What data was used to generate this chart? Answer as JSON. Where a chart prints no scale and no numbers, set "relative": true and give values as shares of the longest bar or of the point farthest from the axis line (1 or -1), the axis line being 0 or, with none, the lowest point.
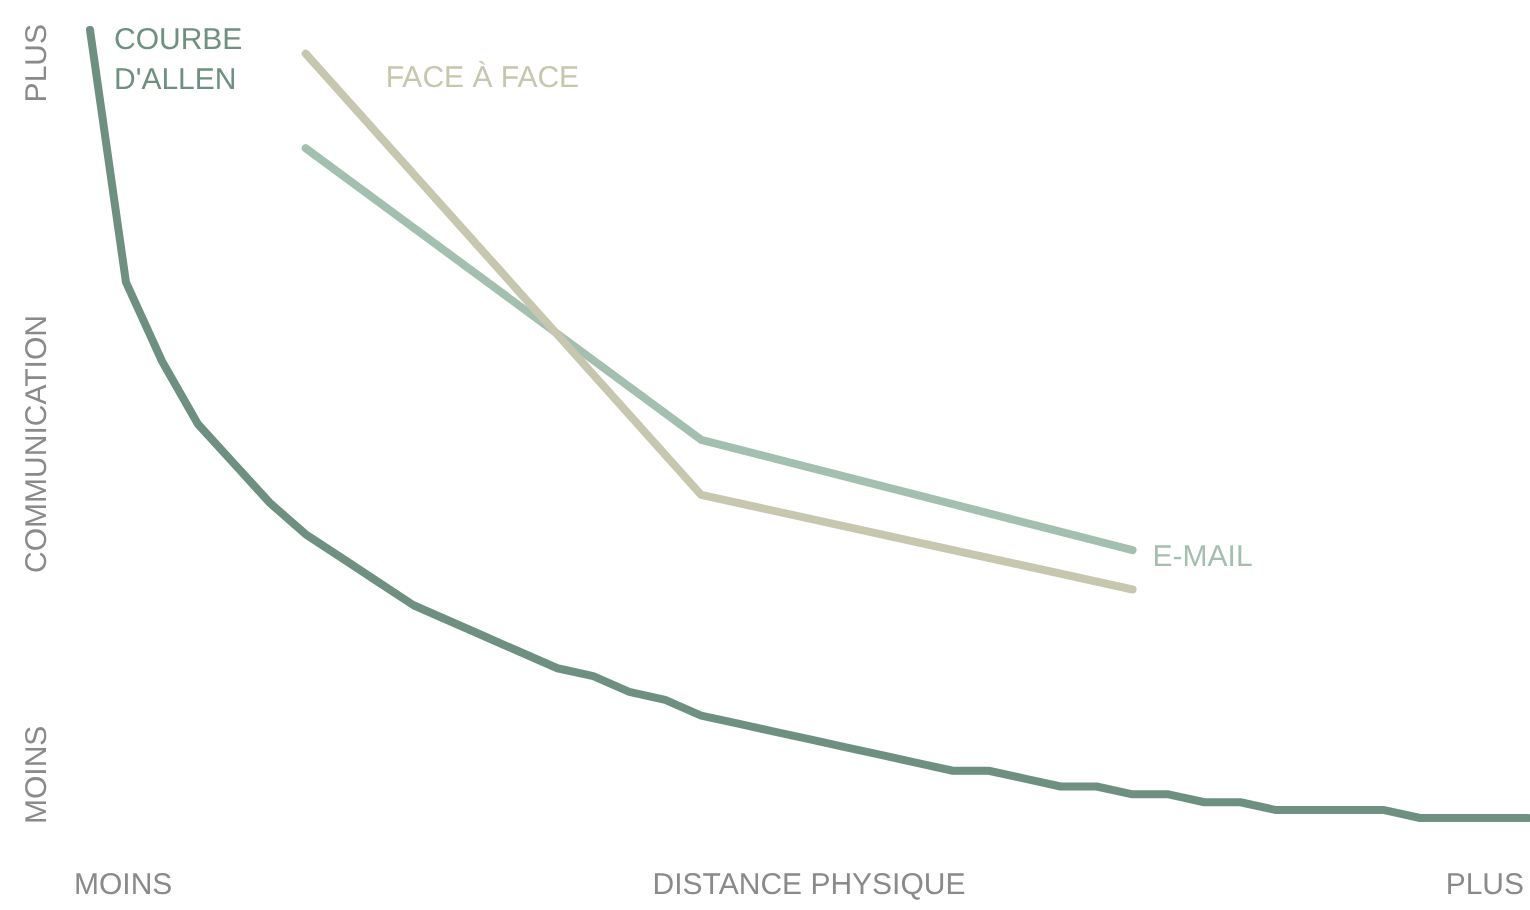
{
  "chart_data": {
    "type": "line",
    "relative": true,
    "xlabel": "DISTANCE PHYSIQUE",
    "ylabel": "COMMUNICATION",
    "annotations": [
      "PLUS",
      "MOINS",
      "MOINS",
      "PLUS"
    ],
    "categories": [
      null,
      null,
      null,
      null,
      null,
      null,
      null,
      null,
      null,
      null,
      null,
      null,
      null,
      null,
      null,
      null,
      null,
      null,
      null,
      null,
      null,
      null,
      null,
      null,
      null,
      null,
      null,
      null,
      null,
      null,
      null,
      null,
      null,
      null,
      null,
      null,
      null,
      null,
      null,
      null,
      null
    ],
    "grid": false,
    "legend": false,
    "marker": "none",
    "line_style": "solid",
    "series": [
      {
        "name": "COURBE D'ALLEN",
        "color": "#6e9080",
        "values": [
          1,
          0.68,
          0.58,
          0.5,
          0.45,
          0.4,
          0.36,
          0.33,
          0.3,
          0.27,
          0.25,
          0.23,
          0.21,
          0.19,
          0.18,
          0.16,
          0.15,
          0.13,
          0.12,
          0.11,
          0.1,
          0.09,
          0.08,
          0.07,
          0.06,
          0.06,
          0.05,
          0.04,
          0.04,
          0.03,
          0.03,
          0.02,
          0.02,
          0.01,
          0.01,
          0.01,
          0.01,
          0,
          0,
          0,
          0
        ]
      },
      {
        "name": "FACE À FACE",
        "color": "#c7c6ae",
        "values": [
          null,
          null,
          null,
          null,
          null,
          null,
          0.97,
          null,
          null,
          null,
          null,
          null,
          null,
          null,
          null,
          null,
          null,
          0.41,
          null,
          null,
          null,
          null,
          null,
          null,
          null,
          null,
          null,
          null,
          null,
          0.29,
          null,
          null,
          null,
          null,
          null,
          null,
          null,
          null,
          null,
          null,
          null
        ]
      },
      {
        "name": "E-MAIL",
        "color": "#a3bfb0",
        "values": [
          null,
          null,
          null,
          null,
          null,
          null,
          0.85,
          null,
          null,
          null,
          null,
          null,
          null,
          null,
          null,
          null,
          null,
          0.48,
          null,
          null,
          null,
          null,
          null,
          null,
          null,
          null,
          null,
          null,
          null,
          0.34,
          null,
          null,
          null,
          null,
          null,
          null,
          null,
          null,
          null,
          null,
          null
        ]
      }
    ]
  }
}
